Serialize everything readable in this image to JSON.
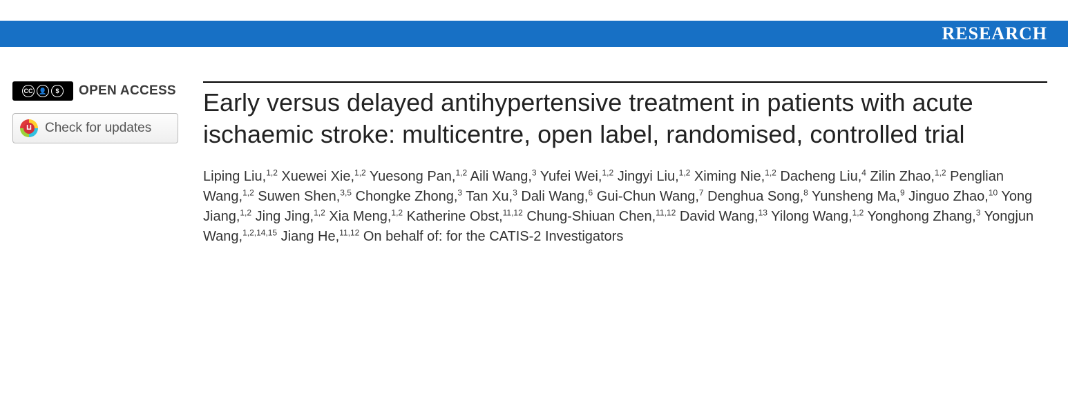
{
  "banner": {
    "label": "RESEARCH",
    "background_color": "#1770c5",
    "text_color": "#ffffff"
  },
  "sidebar": {
    "open_access_label": "OPEN ACCESS",
    "cc_badge": {
      "parts": [
        "CC",
        "BY",
        "NC"
      ],
      "bg": "#000000",
      "fg": "#ffffff"
    },
    "check_updates_label": "Check for updates"
  },
  "article": {
    "title": "Early versus delayed antihypertensive treatment in patients with acute ischaemic stroke: multicentre, open label, randomised, controlled trial",
    "authors": [
      {
        "name": "Liping Liu",
        "affil": "1,2"
      },
      {
        "name": "Xuewei Xie",
        "affil": "1,2"
      },
      {
        "name": "Yuesong Pan",
        "affil": "1,2"
      },
      {
        "name": "Aili Wang",
        "affil": "3"
      },
      {
        "name": "Yufei Wei",
        "affil": "1,2"
      },
      {
        "name": "Jingyi Liu",
        "affil": "1,2"
      },
      {
        "name": "Ximing Nie",
        "affil": "1,2"
      },
      {
        "name": "Dacheng Liu",
        "affil": "4"
      },
      {
        "name": "Zilin Zhao",
        "affil": "1,2"
      },
      {
        "name": "Penglian Wang",
        "affil": "1,2"
      },
      {
        "name": "Suwen Shen",
        "affil": "3,5"
      },
      {
        "name": "Chongke Zhong",
        "affil": "3"
      },
      {
        "name": "Tan Xu",
        "affil": "3"
      },
      {
        "name": "Dali Wang",
        "affil": "6"
      },
      {
        "name": "Gui-Chun Wang",
        "affil": "7"
      },
      {
        "name": "Denghua Song",
        "affil": "8"
      },
      {
        "name": "Yunsheng Ma",
        "affil": "9"
      },
      {
        "name": "Jinguo Zhao",
        "affil": "10"
      },
      {
        "name": "Yong Jiang",
        "affil": "1,2"
      },
      {
        "name": "Jing Jing",
        "affil": "1,2"
      },
      {
        "name": "Xia Meng",
        "affil": "1,2"
      },
      {
        "name": "Katherine Obst",
        "affil": "11,12"
      },
      {
        "name": "Chung-Shiuan Chen",
        "affil": "11,12"
      },
      {
        "name": "David Wang",
        "affil": "13"
      },
      {
        "name": "Yilong Wang",
        "affil": "1,2"
      },
      {
        "name": "Yonghong Zhang",
        "affil": "3"
      },
      {
        "name": "Yongjun Wang",
        "affil": "1,2,14,15"
      },
      {
        "name": "Jiang He",
        "affil": "11,12"
      }
    ],
    "on_behalf": "On behalf of: for the CATIS-2 Investigators"
  }
}
